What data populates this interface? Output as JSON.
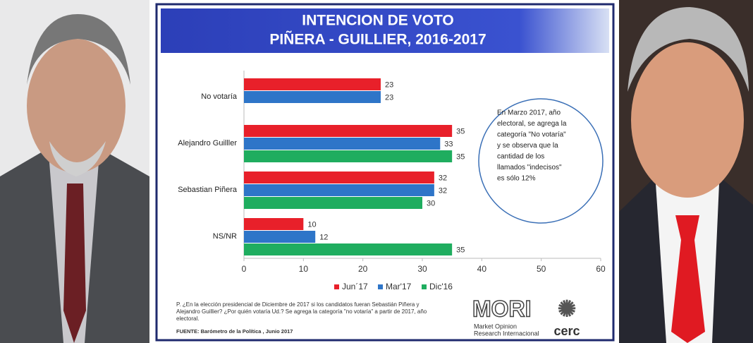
{
  "chart_data": {
    "type": "bar",
    "orientation": "horizontal",
    "title": "INTENCION DE VOTO",
    "subtitle": "PIÑERA -  GUILLIER, 2016-2017",
    "categories": [
      "No votaría",
      "Alejandro Guilller",
      "Sebastian Piñera",
      "NS/NR"
    ],
    "series": [
      {
        "name": "Jun´17",
        "color": "#e8202a",
        "values": [
          23,
          35,
          32,
          10
        ]
      },
      {
        "name": "Mar'17",
        "color": "#2e75c8",
        "values": [
          23,
          33,
          32,
          12
        ]
      },
      {
        "name": "Dic'16",
        "color": "#1fad5f",
        "values": [
          null,
          35,
          30,
          35
        ]
      }
    ],
    "xlim": [
      0,
      60
    ],
    "xticks": [
      0,
      10,
      20,
      30,
      40,
      50,
      60
    ],
    "annotation": [
      "En Marzo 2017, año",
      "electoral,  se agrega la",
      "categoría \"No votaría\"",
      "y se observa que la",
      "cantidad de  los",
      "llamados \"indecisos\"",
      "es sólo 12%"
    ],
    "footnote": [
      "P. ¿En la elección presidencial de Diciembre de 2017 si los candidatos fueran Sebastián Piñera y",
      "Alejandro Guillier? ¿Por quién votaría Ud.? Se agrega la categoría \"no votaría\" a partir de 2017, año",
      "electoral."
    ],
    "source": "FUENTE: Barómetro de la Política , Junio 2017",
    "logo": {
      "mori": "MORI",
      "mori_sub": [
        "Market Opinion",
        "Research Internacional"
      ],
      "cerc": "cerc"
    }
  }
}
